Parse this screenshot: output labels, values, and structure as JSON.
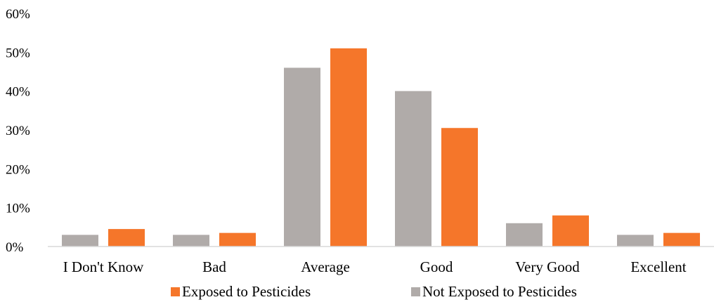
{
  "chart_data": {
    "type": "bar",
    "categories": [
      "I Don't Know",
      "Bad",
      "Average",
      "Good",
      "Very Good",
      "Excellent"
    ],
    "series": [
      {
        "name": "Not Exposed to Pesticides",
        "color": "#b0aba9",
        "values": [
          3,
          3,
          46,
          40,
          6,
          3
        ]
      },
      {
        "name": "Exposed to Pesticides",
        "color": "#f5762a",
        "values": [
          4.5,
          3.5,
          51,
          30.5,
          8,
          3.5
        ]
      }
    ],
    "yticks": [
      "0%",
      "10%",
      "20%",
      "30%",
      "40%",
      "50%",
      "60%"
    ],
    "ylim": [
      0,
      60
    ],
    "grid": false,
    "legend_position": "bottom",
    "legend_order": [
      "Exposed to Pesticides",
      "Not Exposed to Pesticides"
    ]
  }
}
